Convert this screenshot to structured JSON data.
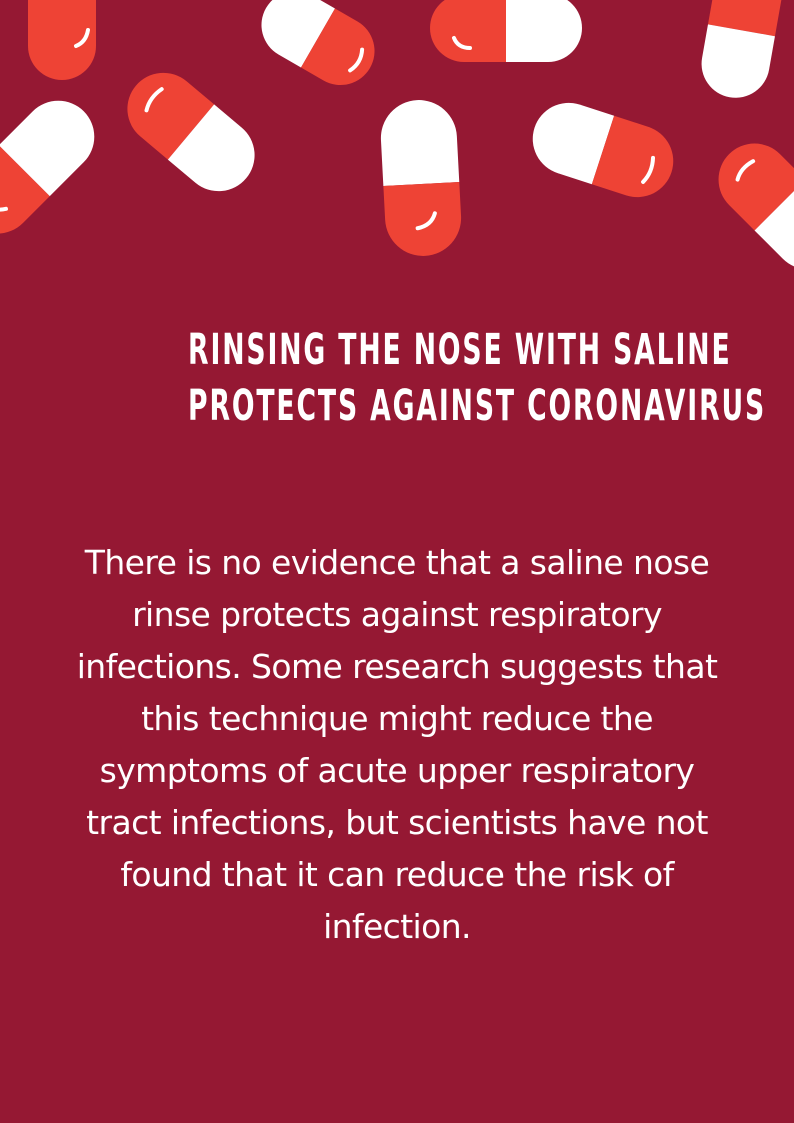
{
  "headline": {
    "lines": [
      "RINSING THE NOSE WITH SALINE",
      "PROTECTS AGAINST CORONAVIRUS"
    ]
  },
  "body": {
    "lines": [
      "There is no evidence that a saline nose",
      "rinse protects against respiratory",
      "infections. Some research suggests that",
      "this technique might reduce the",
      "symptoms of acute upper respiratory",
      "tract infections, but scientists have not",
      "found that it can reduce the risk of",
      "infection."
    ]
  },
  "colors": {
    "background": "#951833",
    "pill_red": "#ee4335",
    "pill_white": "#ffffff",
    "text": "#ffffff"
  },
  "decoration": {
    "icon": "pill-capsule-icon"
  }
}
